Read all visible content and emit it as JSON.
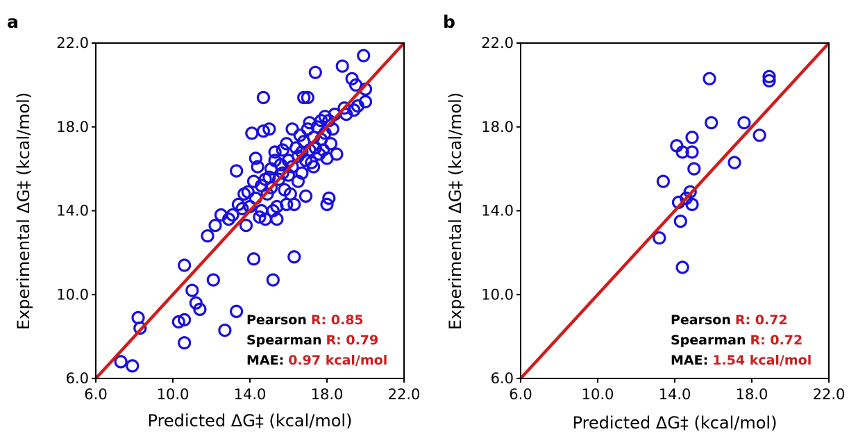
{
  "colors": {
    "points": "#1a10e0",
    "diagonal": "#d01c1c",
    "stat_value": "#cc1f1f"
  },
  "chart_data": [
    {
      "type": "scatter",
      "panel_label": "a",
      "xlabel": "Predicted ΔG‡ (kcal/mol)",
      "ylabel": "Experimental ΔG‡ (kcal/mol)",
      "xlim": [
        6.0,
        22.0
      ],
      "ylim": [
        6.0,
        22.0
      ],
      "xticks": [
        "6.0",
        "10.0",
        "14.0",
        "18.0",
        "22.0"
      ],
      "yticks": [
        "6.0",
        "10.0",
        "14.0",
        "18.0",
        "22.0"
      ],
      "grid": false,
      "reference_line": "y = x",
      "stats": [
        {
          "key": "Pearson",
          "value": "R: 0.85"
        },
        {
          "key": "Spearman",
          "value": "R: 0.79"
        },
        {
          "key": "MAE:",
          "value": "0.97 kcal/mol"
        }
      ],
      "points": [
        [
          7.3,
          6.8
        ],
        [
          7.9,
          6.6
        ],
        [
          8.2,
          8.9
        ],
        [
          8.3,
          8.4
        ],
        [
          10.3,
          8.7
        ],
        [
          10.6,
          8.8
        ],
        [
          10.6,
          7.7
        ],
        [
          10.6,
          11.4
        ],
        [
          11.0,
          10.2
        ],
        [
          11.2,
          9.6
        ],
        [
          11.4,
          9.3
        ],
        [
          11.8,
          12.8
        ],
        [
          12.1,
          10.7
        ],
        [
          12.2,
          13.3
        ],
        [
          12.5,
          13.8
        ],
        [
          12.7,
          8.3
        ],
        [
          12.9,
          13.6
        ],
        [
          13.1,
          13.8
        ],
        [
          13.3,
          9.2
        ],
        [
          13.3,
          15.9
        ],
        [
          13.4,
          14.3
        ],
        [
          13.6,
          14.1
        ],
        [
          13.7,
          14.8
        ],
        [
          13.8,
          13.3
        ],
        [
          13.9,
          14.9
        ],
        [
          14.0,
          14.2
        ],
        [
          14.1,
          17.7
        ],
        [
          14.2,
          11.7
        ],
        [
          14.2,
          15.4
        ],
        [
          14.3,
          14.6
        ],
        [
          14.3,
          16.5
        ],
        [
          14.4,
          16.1
        ],
        [
          14.5,
          13.7
        ],
        [
          14.6,
          15.2
        ],
        [
          14.6,
          14.0
        ],
        [
          14.7,
          19.4
        ],
        [
          14.7,
          17.8
        ],
        [
          14.8,
          15.5
        ],
        [
          14.8,
          13.6
        ],
        [
          14.9,
          14.8
        ],
        [
          15.0,
          17.9
        ],
        [
          15.0,
          15.6
        ],
        [
          15.1,
          15.1
        ],
        [
          15.1,
          16.0
        ],
        [
          15.2,
          14.0
        ],
        [
          15.2,
          10.7
        ],
        [
          15.3,
          16.8
        ],
        [
          15.3,
          16.4
        ],
        [
          15.4,
          14.2
        ],
        [
          15.4,
          13.6
        ],
        [
          15.5,
          15.5
        ],
        [
          15.6,
          16.2
        ],
        [
          15.7,
          15.8
        ],
        [
          15.7,
          16.9
        ],
        [
          15.8,
          15.0
        ],
        [
          15.9,
          14.3
        ],
        [
          15.9,
          17.2
        ],
        [
          16.0,
          16.4
        ],
        [
          16.0,
          15.7
        ],
        [
          16.1,
          14.8
        ],
        [
          16.2,
          17.9
        ],
        [
          16.2,
          16.1
        ],
        [
          16.3,
          14.3
        ],
        [
          16.3,
          11.8
        ],
        [
          16.4,
          17.0
        ],
        [
          16.5,
          15.4
        ],
        [
          16.5,
          16.6
        ],
        [
          16.6,
          17.6
        ],
        [
          16.7,
          16.8
        ],
        [
          16.7,
          15.8
        ],
        [
          16.8,
          19.4
        ],
        [
          16.8,
          17.3
        ],
        [
          16.9,
          16.4
        ],
        [
          16.9,
          14.7
        ],
        [
          17.0,
          17.9
        ],
        [
          17.0,
          19.4
        ],
        [
          17.1,
          16.9
        ],
        [
          17.1,
          18.2
        ],
        [
          17.2,
          16.3
        ],
        [
          17.3,
          17.5
        ],
        [
          17.3,
          16.1
        ],
        [
          17.4,
          20.6
        ],
        [
          17.4,
          17.0
        ],
        [
          17.5,
          18.0
        ],
        [
          17.6,
          16.7
        ],
        [
          17.7,
          17.4
        ],
        [
          17.7,
          18.3
        ],
        [
          17.8,
          16.9
        ],
        [
          17.9,
          17.7
        ],
        [
          17.9,
          18.5
        ],
        [
          18.0,
          16.5
        ],
        [
          18.0,
          14.3
        ],
        [
          18.1,
          14.6
        ],
        [
          18.1,
          18.3
        ],
        [
          18.2,
          17.2
        ],
        [
          18.3,
          17.9
        ],
        [
          18.4,
          18.6
        ],
        [
          18.5,
          16.7
        ],
        [
          18.8,
          20.9
        ],
        [
          18.9,
          18.9
        ],
        [
          19.0,
          18.6
        ],
        [
          19.3,
          20.3
        ],
        [
          19.4,
          18.8
        ],
        [
          19.5,
          20.0
        ],
        [
          19.6,
          19.0
        ],
        [
          19.9,
          21.4
        ],
        [
          20.0,
          19.8
        ],
        [
          20.0,
          19.2
        ]
      ]
    },
    {
      "type": "scatter",
      "panel_label": "b",
      "xlabel": "Predicted ΔG‡ (kcal/mol)",
      "ylabel": "Experimental ΔG‡ (kcal/mol)",
      "xlim": [
        6.0,
        22.0
      ],
      "ylim": [
        6.0,
        22.0
      ],
      "xticks": [
        "6.0",
        "10.0",
        "14.0",
        "18.0",
        "22.0"
      ],
      "yticks": [
        "6.0",
        "10.0",
        "14.0",
        "18.0",
        "22.0"
      ],
      "grid": false,
      "reference_line": "y = x",
      "stats": [
        {
          "key": "Pearson",
          "value": "R: 0.72"
        },
        {
          "key": "Spearman",
          "value": "R: 0.72"
        },
        {
          "key": "MAE:",
          "value": "1.54 kcal/mol"
        }
      ],
      "points": [
        [
          13.2,
          12.7
        ],
        [
          13.4,
          15.4
        ],
        [
          14.1,
          17.1
        ],
        [
          14.2,
          14.4
        ],
        [
          14.3,
          13.5
        ],
        [
          14.4,
          16.8
        ],
        [
          14.4,
          11.3
        ],
        [
          14.6,
          14.6
        ],
        [
          14.8,
          14.9
        ],
        [
          14.9,
          17.5
        ],
        [
          14.9,
          16.8
        ],
        [
          14.9,
          14.3
        ],
        [
          15.0,
          16.0
        ],
        [
          15.8,
          20.3
        ],
        [
          15.9,
          18.2
        ],
        [
          17.1,
          16.3
        ],
        [
          17.6,
          18.2
        ],
        [
          18.4,
          17.6
        ],
        [
          18.9,
          20.4
        ],
        [
          18.9,
          20.2
        ]
      ]
    }
  ]
}
